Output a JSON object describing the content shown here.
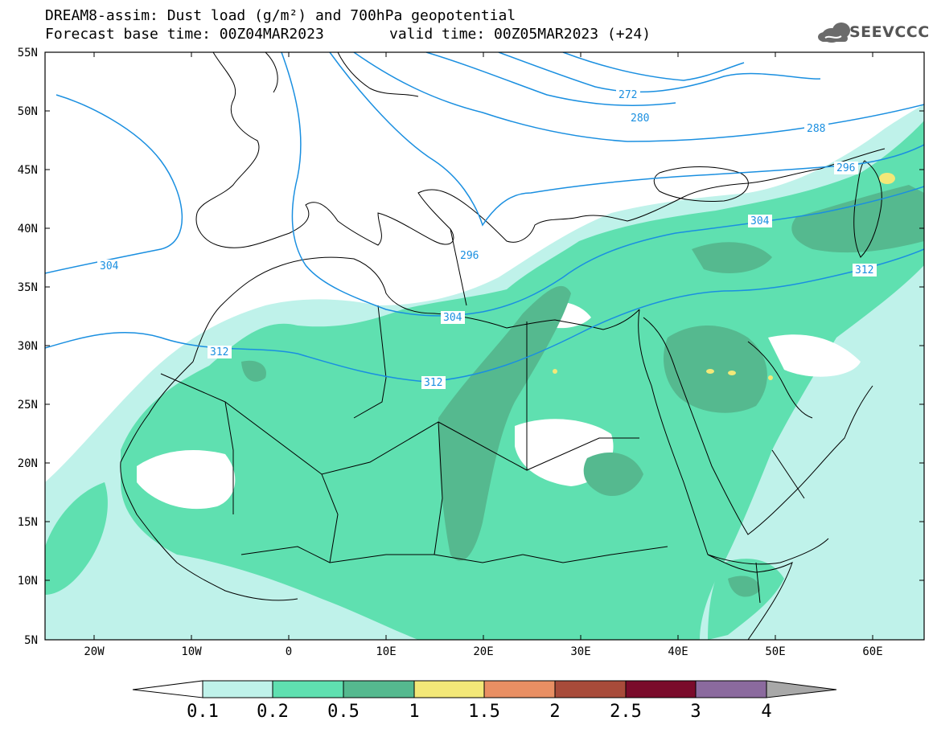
{
  "header": {
    "title_line1": "DREAM8-assim: Dust load (g/m²) and 700hPa geopotential",
    "title_line2a": "Forecast base time: 00Z04MAR2023",
    "title_line2b": "valid time: 00Z05MAR2023 (+24)"
  },
  "logo": {
    "text": "SEEVCCC",
    "icon": "cloud-icon"
  },
  "axes": {
    "lat_labels": [
      "55N",
      "50N",
      "45N",
      "40N",
      "35N",
      "30N",
      "25N",
      "20N",
      "15N",
      "10N",
      "5N"
    ],
    "lon_labels": [
      "20W",
      "10W",
      "0",
      "10E",
      "20E",
      "30E",
      "40E",
      "50E",
      "60E"
    ]
  },
  "contours": {
    "color": "#1a8fe0",
    "labels": [
      "272",
      "280",
      "288",
      "296",
      "296",
      "304",
      "304",
      "304",
      "312",
      "312",
      "312"
    ]
  },
  "colorbar": {
    "ticks": [
      "0.1",
      "0.2",
      "0.5",
      "1",
      "1.5",
      "2",
      "2.5",
      "3",
      "4"
    ],
    "colors": [
      "#bff2ea",
      "#5fe0b0",
      "#55b98f",
      "#f3e878",
      "#e98f63",
      "#a84b3a",
      "#7a0b2b",
      "#8b6a9e"
    ],
    "under_color": "#ffffff",
    "over_color": "#a8a8a8"
  },
  "map_colors": {
    "level1": "#bff2ea",
    "level2": "#5fe0b0",
    "level3": "#55b98f",
    "level4": "#f3e878"
  }
}
